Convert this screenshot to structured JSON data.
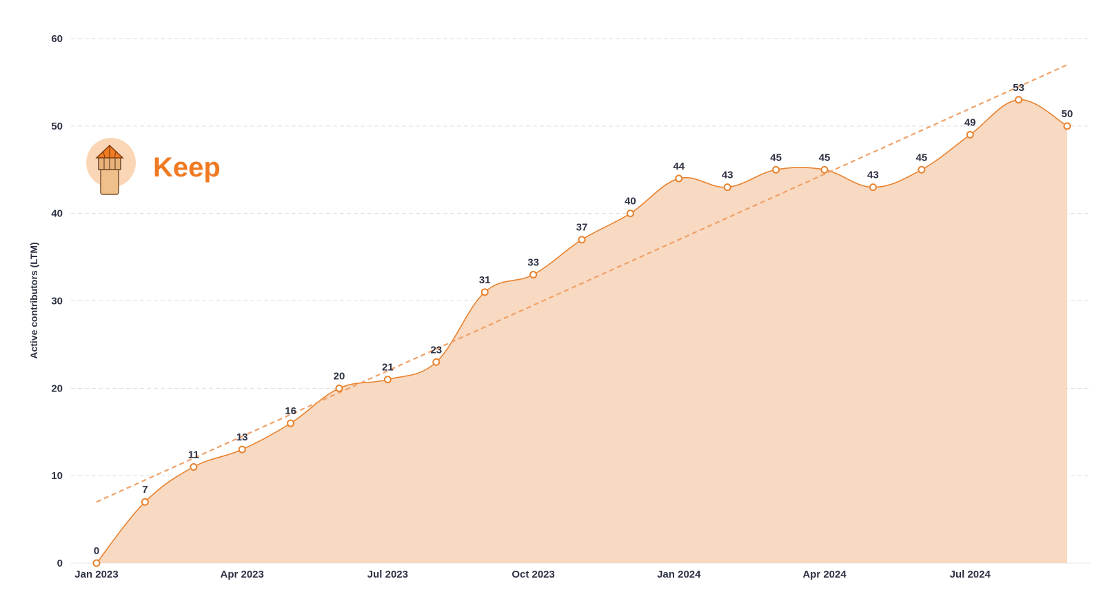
{
  "colors": {
    "line": "#e8822e",
    "area": "#f8d9c2",
    "trend": "#f0a066",
    "grid": "#dddddd",
    "text": "#2d3142",
    "logo_text": "#f07a22",
    "logo_circle": "#fbd6b6"
  },
  "logo": {
    "text": "Keep",
    "icon": "lighthouse-tower-icon"
  },
  "chart_data": {
    "type": "area",
    "title": "",
    "xlabel": "",
    "ylabel": "Active contributors (LTM)",
    "ylim": [
      0,
      60
    ],
    "yticks": [
      0,
      10,
      20,
      30,
      40,
      50,
      60
    ],
    "grid": true,
    "x": [
      "2023-01",
      "2023-02",
      "2023-03",
      "2023-04",
      "2023-05",
      "2023-06",
      "2023-07",
      "2023-08",
      "2023-09",
      "2023-10",
      "2023-11",
      "2023-12",
      "2024-01",
      "2024-02",
      "2024-03",
      "2024-04",
      "2024-05",
      "2024-06",
      "2024-07",
      "2024-08",
      "2024-09"
    ],
    "xtick_labels": [
      {
        "index": 0,
        "label": "Jan 2023"
      },
      {
        "index": 3,
        "label": "Apr 2023"
      },
      {
        "index": 6,
        "label": "Jul 2023"
      },
      {
        "index": 9,
        "label": "Oct 2023"
      },
      {
        "index": 12,
        "label": "Jan 2024"
      },
      {
        "index": 15,
        "label": "Apr 2024"
      },
      {
        "index": 18,
        "label": "Jul 2024"
      }
    ],
    "series": [
      {
        "name": "Active contributors (LTM)",
        "values": [
          0,
          7,
          11,
          13,
          16,
          20,
          21,
          23,
          31,
          33,
          37,
          40,
          44,
          43,
          45,
          45,
          43,
          45,
          49,
          53,
          50
        ]
      }
    ],
    "trendline": {
      "start": 7,
      "end": 57
    }
  }
}
